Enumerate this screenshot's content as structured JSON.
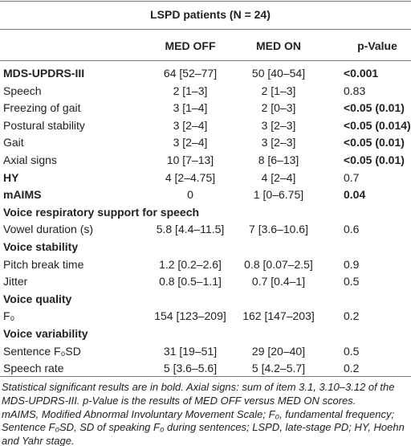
{
  "table": {
    "group_header": "LSPD patients (N = 24)",
    "columns": [
      "MED OFF",
      "MED ON",
      "p-Value"
    ],
    "rows": [
      {
        "label": "MDS-UPDRS-III",
        "med_off": "64 [52–77]",
        "med_on": "50 [40–54]",
        "p": "<0.001",
        "label_bold": true,
        "p_bold": true
      },
      {
        "label": "Speech",
        "med_off": "2 [1–3]",
        "med_on": "2 [1–3]",
        "p": "0.83",
        "label_bold": false,
        "p_bold": false
      },
      {
        "label": "Freezing of gait",
        "med_off": "3 [1–4]",
        "med_on": "2 [0–3]",
        "p": "<0.05 (0.01)",
        "label_bold": false,
        "p_bold": true
      },
      {
        "label": "Postural stability",
        "med_off": "3 [2–4]",
        "med_on": "3 [2–3]",
        "p": "<0.05 (0.014)",
        "label_bold": false,
        "p_bold": true
      },
      {
        "label": "Gait",
        "med_off": "3 [2–4]",
        "med_on": "3 [2–3]",
        "p": "<0.05 (0.01)",
        "label_bold": false,
        "p_bold": true
      },
      {
        "label": "Axial signs",
        "med_off": "10 [7–13]",
        "med_on": "8 [6–13]",
        "p": "<0.05 (0.01)",
        "label_bold": false,
        "p_bold": true
      },
      {
        "label": "HY",
        "med_off": "4 [2–4.75]",
        "med_on": "4 [2–4]",
        "p": "0.7",
        "label_bold": true,
        "p_bold": false
      },
      {
        "label": "mAIMS",
        "med_off": "0",
        "med_on": "1 [0–6.75]",
        "p": "0.04",
        "label_bold": true,
        "p_bold": true
      },
      {
        "heading": "Voice respiratory support for speech"
      },
      {
        "label": "Vowel duration (s)",
        "med_off": "5.8 [4.4–11.5]",
        "med_on": "7 [3.6–10.6]",
        "p": "0.6",
        "label_bold": false,
        "p_bold": false
      },
      {
        "heading": "Voice stability"
      },
      {
        "label": "Pitch break time",
        "med_off": "1.2 [0.2–2.6]",
        "med_on": "0.8 [0.07–2.5]",
        "p": "0.9",
        "label_bold": false,
        "p_bold": false
      },
      {
        "label": "Jitter",
        "med_off": "0.8 [0.5–1.1]",
        "med_on": "0.7 [0.4–1]",
        "p": "0.5",
        "label_bold": false,
        "p_bold": false
      },
      {
        "heading": "Voice quality"
      },
      {
        "label": "F₀",
        "med_off": "154 [123–209]",
        "med_on": "162 [147–203]",
        "p": "0.2",
        "label_bold": false,
        "p_bold": false
      },
      {
        "heading": "Voice variability"
      },
      {
        "label": "Sentence F₀SD",
        "med_off": "31 [19–51]",
        "med_on": "29 [20–40]",
        "p": "0.5",
        "label_bold": false,
        "p_bold": false
      },
      {
        "label": "Speech rate",
        "med_off": "5 [3.6–5.6]",
        "med_on": "5 [4.2–5.7]",
        "p": "0.2",
        "label_bold": false,
        "p_bold": false
      }
    ],
    "footnote": [
      "Statistical significant results are in bold. Axial signs: sum of item 3.1, 3.10–3.12 of the",
      "MDS-UPDRS-III. p-Value is the results of MED OFF versus MED ON scores.",
      "mAIMS, Modified Abnormal Involuntary Movement Scale; F₀, fundamental frequency;",
      "Sentence F₀SD, SD of speaking F₀ during sentences; LSPD, late-stage PD; HY, Hoehn",
      "and Yahr stage."
    ]
  }
}
